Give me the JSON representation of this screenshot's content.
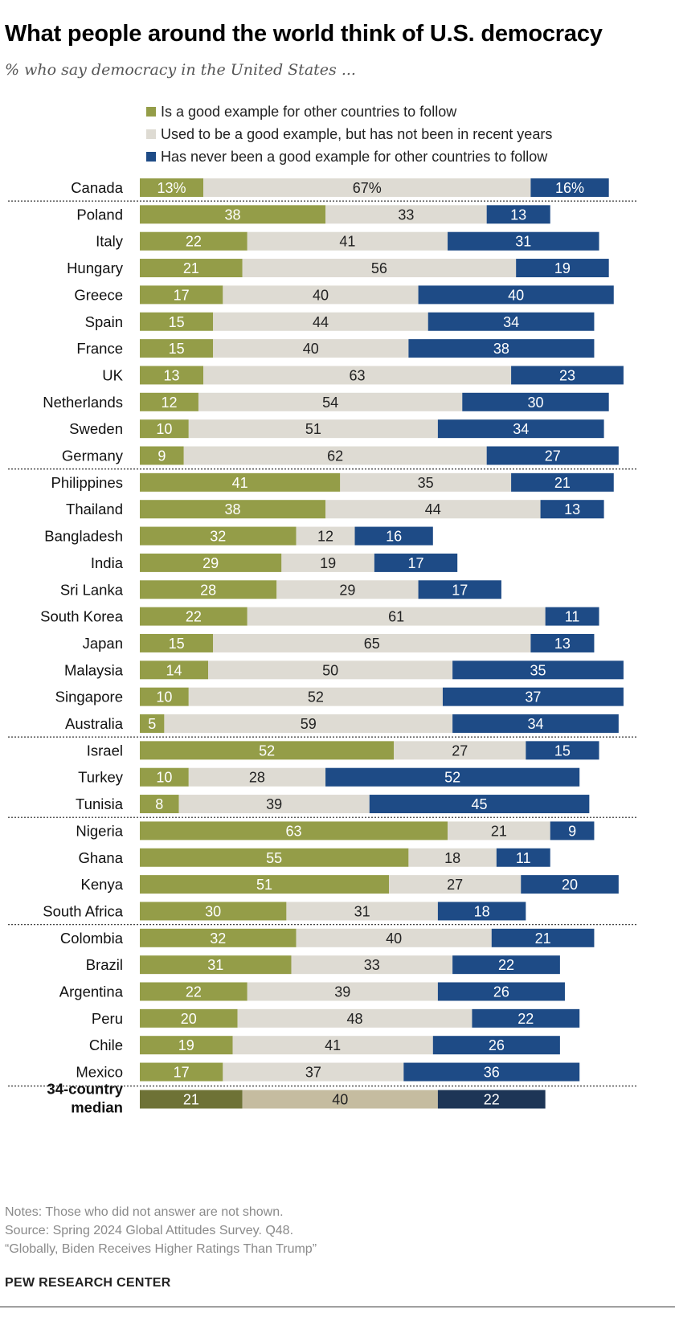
{
  "header": {
    "title": "What people around the world think of U.S. democracy",
    "subtitle": "% who say democracy in the United States ..."
  },
  "legend": [
    {
      "label": "Is a good example for other countries to follow",
      "color": "#949d48"
    },
    {
      "label": "Used to be a good example, but has not been in recent years",
      "color": "#dedbd3"
    },
    {
      "label": "Has never been a good example for other countries to follow",
      "color": "#1e4b86"
    }
  ],
  "chart_data": {
    "type": "bar",
    "orientation": "horizontal",
    "stacked": true,
    "xlim": [
      0,
      100
    ],
    "series": [
      {
        "name": "Is a good example for other countries to follow",
        "color": "#949d48",
        "median_color": "#6e7236"
      },
      {
        "name": "Used to be a good example, but has not been in recent years",
        "color": "#dedbd3",
        "median_color": "#c5bca0"
      },
      {
        "name": "Has never been a good example for other countries to follow",
        "color": "#1e4b86",
        "median_color": "#1d3556"
      }
    ],
    "rows": [
      {
        "label": "Canada",
        "values": [
          13,
          67,
          16
        ],
        "labels": [
          "13%",
          "67%",
          "16%"
        ],
        "group": 1
      },
      {
        "label": "Poland",
        "values": [
          38,
          33,
          13
        ],
        "group": 2
      },
      {
        "label": "Italy",
        "values": [
          22,
          41,
          31
        ],
        "group": 2
      },
      {
        "label": "Hungary",
        "values": [
          21,
          56,
          19
        ],
        "group": 2
      },
      {
        "label": "Greece",
        "values": [
          17,
          40,
          40
        ],
        "group": 2
      },
      {
        "label": "Spain",
        "values": [
          15,
          44,
          34
        ],
        "group": 2
      },
      {
        "label": "France",
        "values": [
          15,
          40,
          38
        ],
        "group": 2
      },
      {
        "label": "UK",
        "values": [
          13,
          63,
          23
        ],
        "group": 2
      },
      {
        "label": "Netherlands",
        "values": [
          12,
          54,
          30
        ],
        "group": 2
      },
      {
        "label": "Sweden",
        "values": [
          10,
          51,
          34
        ],
        "group": 2
      },
      {
        "label": "Germany",
        "values": [
          9,
          62,
          27
        ],
        "group": 2
      },
      {
        "label": "Philippines",
        "values": [
          41,
          35,
          21
        ],
        "group": 3
      },
      {
        "label": "Thailand",
        "values": [
          38,
          44,
          13
        ],
        "group": 3
      },
      {
        "label": "Bangladesh",
        "values": [
          32,
          12,
          16
        ],
        "group": 3
      },
      {
        "label": "India",
        "values": [
          29,
          19,
          17
        ],
        "group": 3
      },
      {
        "label": "Sri Lanka",
        "values": [
          28,
          29,
          17
        ],
        "group": 3
      },
      {
        "label": "South Korea",
        "values": [
          22,
          61,
          11
        ],
        "group": 3
      },
      {
        "label": "Japan",
        "values": [
          15,
          65,
          13
        ],
        "group": 3
      },
      {
        "label": "Malaysia",
        "values": [
          14,
          50,
          35
        ],
        "group": 3
      },
      {
        "label": "Singapore",
        "values": [
          10,
          52,
          37
        ],
        "group": 3
      },
      {
        "label": "Australia",
        "values": [
          5,
          59,
          34
        ],
        "group": 3
      },
      {
        "label": "Israel",
        "values": [
          52,
          27,
          15
        ],
        "group": 4
      },
      {
        "label": "Turkey",
        "values": [
          10,
          28,
          52
        ],
        "group": 4
      },
      {
        "label": "Tunisia",
        "values": [
          8,
          39,
          45
        ],
        "group": 4
      },
      {
        "label": "Nigeria",
        "values": [
          63,
          21,
          9
        ],
        "group": 5
      },
      {
        "label": "Ghana",
        "values": [
          55,
          18,
          11
        ],
        "group": 5
      },
      {
        "label": "Kenya",
        "values": [
          51,
          27,
          20
        ],
        "group": 5
      },
      {
        "label": "South Africa",
        "values": [
          30,
          31,
          18
        ],
        "group": 5
      },
      {
        "label": "Colombia",
        "values": [
          32,
          40,
          21
        ],
        "group": 6
      },
      {
        "label": "Brazil",
        "values": [
          31,
          33,
          22
        ],
        "group": 6
      },
      {
        "label": "Argentina",
        "values": [
          22,
          39,
          26
        ],
        "group": 6
      },
      {
        "label": "Peru",
        "values": [
          20,
          48,
          22
        ],
        "group": 6
      },
      {
        "label": "Chile",
        "values": [
          19,
          41,
          26
        ],
        "group": 6
      },
      {
        "label": "Mexico",
        "values": [
          17,
          37,
          36
        ],
        "group": 6
      }
    ],
    "median": {
      "label_lines": [
        "34-country",
        "median"
      ],
      "values": [
        21,
        40,
        22
      ]
    }
  },
  "notes": [
    "Notes: Those who did not answer are not shown.",
    "Source: Spring 2024 Global Attitudes Survey. Q48.",
    "“Globally, Biden Receives Higher Ratings Than Trump”"
  ],
  "brand": "PEW RESEARCH CENTER"
}
